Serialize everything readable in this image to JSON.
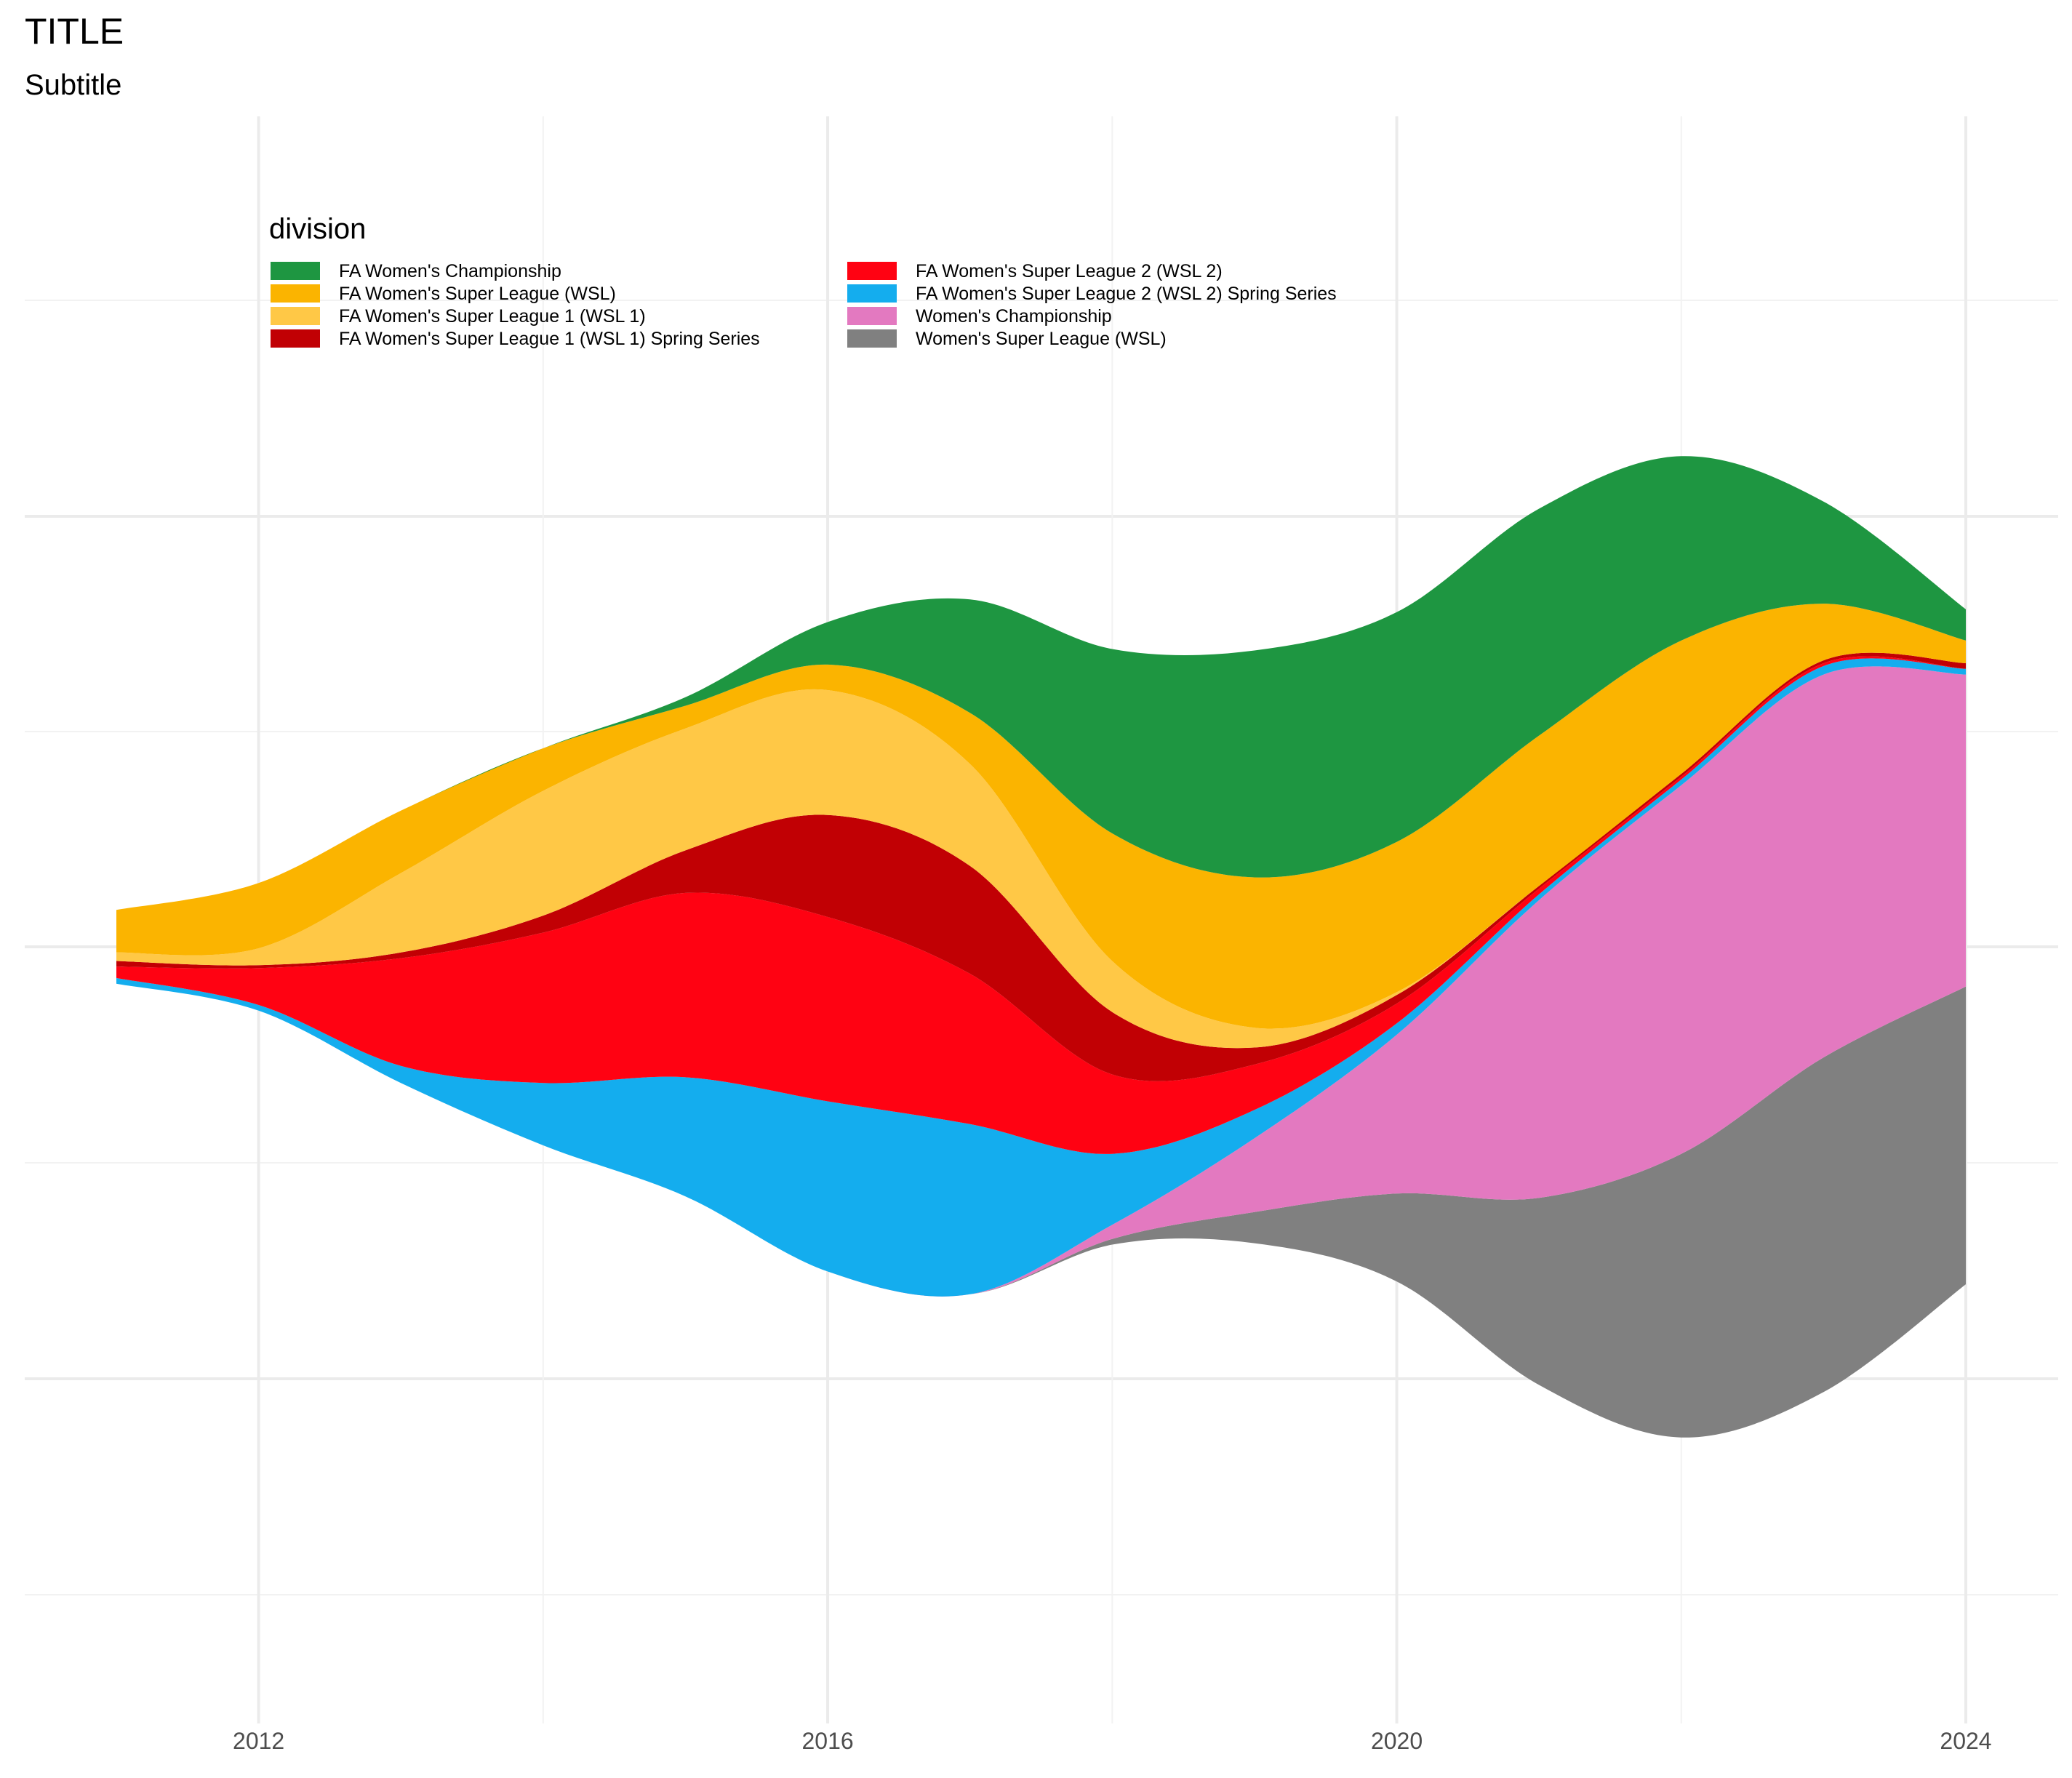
{
  "chart_data": {
    "type": "area",
    "subtype": "streamgraph",
    "title": "TITLE",
    "subtitle": "Subtitle",
    "xlabel": "",
    "ylabel": "",
    "xlim": [
      2010.5,
      2024.5
    ],
    "x_ticks": [
      "2012",
      "2016",
      "2020",
      "2024"
    ],
    "grid": true,
    "legend": {
      "title": "division",
      "placement": "top-left",
      "columns": 2
    },
    "x": [
      2011,
      2012,
      2013,
      2014,
      2015,
      2016,
      2017,
      2018,
      2019,
      2020,
      2021,
      2022,
      2023,
      2024
    ],
    "series": [
      {
        "name": "FA Women's Championship",
        "color": "#1e9641",
        "values": [
          0,
          0,
          0,
          0,
          0.3,
          1.5,
          4.0,
          6.5,
          8.0,
          8.1,
          8.0,
          6.5,
          3.6,
          1.1
        ]
      },
      {
        "name": "FA Women's Super League (WSL)",
        "color": "#fbb400",
        "values": [
          1.5,
          2.3,
          2.2,
          1.5,
          0.8,
          0.9,
          1.8,
          4.5,
          5.3,
          5.3,
          5.3,
          4.7,
          2.0,
          0.8
        ]
      },
      {
        "name": "FA Women's Super League 1 (WSL 1)",
        "color": "#ffc846",
        "values": [
          0.3,
          0.6,
          2.8,
          4.4,
          4.3,
          4.4,
          3.6,
          1.8,
          0.7,
          0.1,
          0,
          0,
          0,
          0
        ]
      },
      {
        "name": "FA Women's Super League 1 (WSL 1) Spring Series",
        "color": "#c10004",
        "values": [
          0.2,
          0.1,
          0.2,
          0.6,
          1.5,
          3.6,
          3.8,
          2.2,
          0.6,
          0.3,
          0.1,
          0.1,
          0.1,
          0.2
        ]
      },
      {
        "name": "FA Women's Super League 2 (WSL 2)",
        "color": "#ff0212",
        "values": [
          0.4,
          1.3,
          3.8,
          5.3,
          6.5,
          6.5,
          5.3,
          2.8,
          1.6,
          0.7,
          0.2,
          0.1,
          0.1,
          0
        ]
      },
      {
        "name": "FA Women's Super League 2 (WSL 2) Spring Series",
        "color": "#14adee",
        "values": [
          0.2,
          0.2,
          0.6,
          2.2,
          4.2,
          6.0,
          6.0,
          2.5,
          1.0,
          0.4,
          0.2,
          0.2,
          0.3,
          0.2
        ]
      },
      {
        "name": "Women's Championship",
        "color": "#e379c0",
        "values": [
          0,
          0,
          0,
          0,
          0,
          0,
          0,
          0.5,
          2.6,
          5.6,
          10.5,
          13.0,
          13.5,
          11.0
        ]
      },
      {
        "name": "Women's Super League (WSL)",
        "color": "#808080",
        "values": [
          0,
          0,
          0,
          0,
          0,
          0,
          0,
          0.2,
          1.1,
          3.1,
          6.6,
          10.0,
          11.8,
          10.5
        ]
      }
    ]
  }
}
